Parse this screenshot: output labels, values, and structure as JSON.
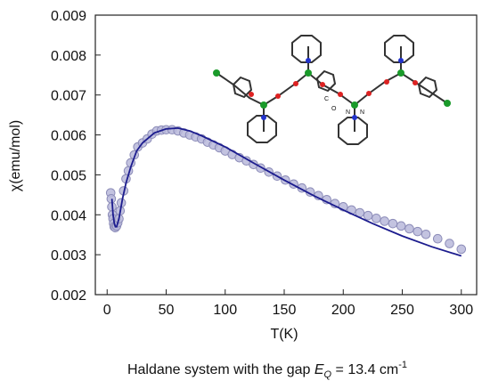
{
  "chart_data": {
    "type": "scatter",
    "xlabel": "T(K)",
    "ylabel": "χ(emu/mol)",
    "xlim": [
      -10,
      313
    ],
    "ylim": [
      0.002,
      0.009
    ],
    "xticks": [
      0,
      50,
      100,
      150,
      200,
      250,
      300
    ],
    "yticks": [
      0.002,
      0.003,
      0.004,
      0.005,
      0.006,
      0.007,
      0.008,
      0.009
    ],
    "series": [
      {
        "type": "scatter",
        "color": "#b9b9da",
        "x": [
          3,
          3.5,
          4,
          4.5,
          5,
          5.5,
          6,
          7,
          8,
          9,
          10,
          11,
          12,
          14,
          16,
          18,
          20,
          23,
          26,
          30,
          34,
          38,
          42,
          46,
          50,
          55,
          60,
          65,
          70,
          75,
          80,
          85,
          90,
          95,
          100,
          106,
          112,
          118,
          124,
          130,
          137,
          144,
          151,
          158,
          165,
          172,
          179,
          186,
          193,
          200,
          207,
          214,
          221,
          228,
          235,
          242,
          249,
          256,
          263,
          270,
          280,
          290,
          300
        ],
        "values": [
          0.00455,
          0.0044,
          0.0042,
          0.004,
          0.0039,
          0.00378,
          0.0037,
          0.00368,
          0.00372,
          0.0038,
          0.0039,
          0.0041,
          0.0043,
          0.0046,
          0.0049,
          0.0051,
          0.0053,
          0.0055,
          0.0057,
          0.0058,
          0.0059,
          0.00602,
          0.0061,
          0.00612,
          0.00613,
          0.00613,
          0.0061,
          0.00605,
          0.006,
          0.00595,
          0.0059,
          0.00582,
          0.00575,
          0.00568,
          0.0056,
          0.00551,
          0.00543,
          0.00535,
          0.00526,
          0.00517,
          0.00507,
          0.00497,
          0.00487,
          0.00477,
          0.00467,
          0.00457,
          0.00448,
          0.00438,
          0.00428,
          0.0042,
          0.00412,
          0.00405,
          0.00398,
          0.00391,
          0.00384,
          0.00378,
          0.00372,
          0.00365,
          0.00358,
          0.00351,
          0.0034,
          0.00328,
          0.00314
        ]
      },
      {
        "type": "line",
        "color": "#1c1c8e",
        "x": [
          4,
          5,
          6,
          7,
          8,
          10,
          13,
          16,
          20,
          25,
          30,
          40,
          50,
          60,
          70,
          80,
          100,
          125,
          150,
          175,
          200,
          225,
          250,
          275,
          300
        ],
        "values": [
          0.0044,
          0.004,
          0.0038,
          0.0037,
          0.0037,
          0.0039,
          0.0044,
          0.0048,
          0.0052,
          0.0056,
          0.0058,
          0.00605,
          0.00615,
          0.00617,
          0.0061,
          0.00598,
          0.0057,
          0.00528,
          0.00487,
          0.00448,
          0.00412,
          0.00378,
          0.00347,
          0.0032,
          0.00297
        ]
      }
    ],
    "inset_labels": [
      "C",
      "O",
      "N",
      "N"
    ]
  },
  "caption": {
    "prefix": "Haldane system with the gap ",
    "symbol": "E",
    "subscript": "Q",
    "equals": " = 13.4 cm",
    "superscript": "-1"
  }
}
